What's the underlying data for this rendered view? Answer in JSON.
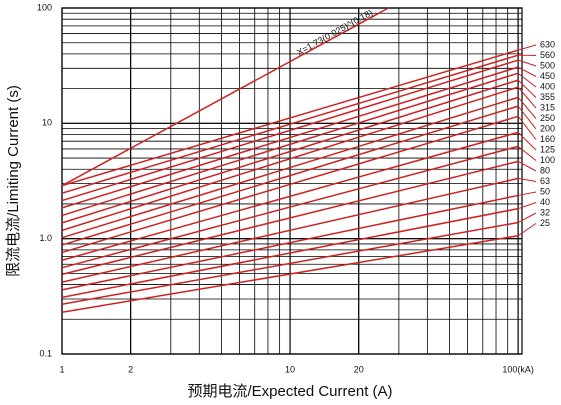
{
  "chart_data": {
    "type": "line",
    "xlabel": "预期电流/Expected Current (A)",
    "ylabel": "限流电流/Limiting Current (s)",
    "log_x": true,
    "log_y": true,
    "grid": true,
    "xlim": [
      1,
      104
    ],
    "ylim": [
      0.1,
      100
    ],
    "xticks": [
      1,
      2,
      10,
      20,
      {
        "value": 100,
        "label": "100(kA)"
      }
    ],
    "yticks": [
      0.1,
      {
        "value": 1,
        "label": "1.0"
      },
      10,
      100
    ],
    "x": [
      1,
      100
    ],
    "color": "#cc2222",
    "series": [
      {
        "name": "25",
        "values": [
          0.23,
          1.06
        ]
      },
      {
        "name": "32",
        "values": [
          0.27,
          1.38
        ]
      },
      {
        "name": "40",
        "values": [
          0.31,
          1.82
        ]
      },
      {
        "name": "50",
        "values": [
          0.36,
          2.37
        ]
      },
      {
        "name": "63",
        "values": [
          0.42,
          3.33
        ]
      },
      {
        "name": "80",
        "values": [
          0.49,
          4.68
        ]
      },
      {
        "name": "100",
        "values": [
          0.56,
          6.31
        ]
      },
      {
        "name": "125",
        "values": [
          0.65,
          8.35
        ]
      },
      {
        "name": "160",
        "values": [
          0.76,
          11.5
        ]
      },
      {
        "name": "200",
        "values": [
          0.88,
          14.1
        ]
      },
      {
        "name": "250",
        "values": [
          1.02,
          16.8
        ]
      },
      {
        "name": "315",
        "values": [
          1.18,
          20.6
        ]
      },
      {
        "name": "355",
        "values": [
          1.37,
          23.7
        ]
      },
      {
        "name": "400",
        "values": [
          1.59,
          27.2
        ]
      },
      {
        "name": "450",
        "values": [
          1.85,
          30.7
        ]
      },
      {
        "name": "500",
        "values": [
          2.14,
          35.3
        ]
      },
      {
        "name": "560",
        "values": [
          2.48,
          39.0
        ]
      },
      {
        "name": "630",
        "values": [
          2.88,
          43.1
        ]
      }
    ],
    "curve": {
      "label": "X=1.73(0.025)^(0.18)",
      "x": [
        1,
        27
      ],
      "values": [
        2.88,
        100
      ]
    }
  }
}
